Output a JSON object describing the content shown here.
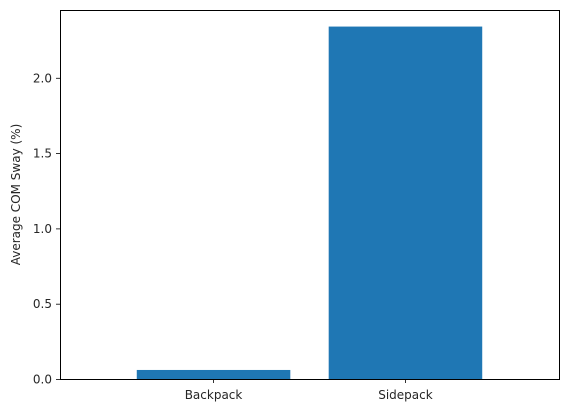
{
  "chart_data": {
    "type": "bar",
    "categories": [
      "Backpack",
      "Sidepack"
    ],
    "values": [
      0.06,
      2.34
    ],
    "xlabel": "",
    "ylabel": "Average COM Sway (%)",
    "ylim": [
      0,
      2.45
    ],
    "yticks": [
      0.0,
      0.5,
      1.0,
      1.5,
      2.0
    ],
    "ytick_labels": [
      "0.0",
      "0.5",
      "1.0",
      "1.5",
      "2.0"
    ],
    "bar_color": "#1f77b4",
    "grid": false,
    "legend": false
  }
}
